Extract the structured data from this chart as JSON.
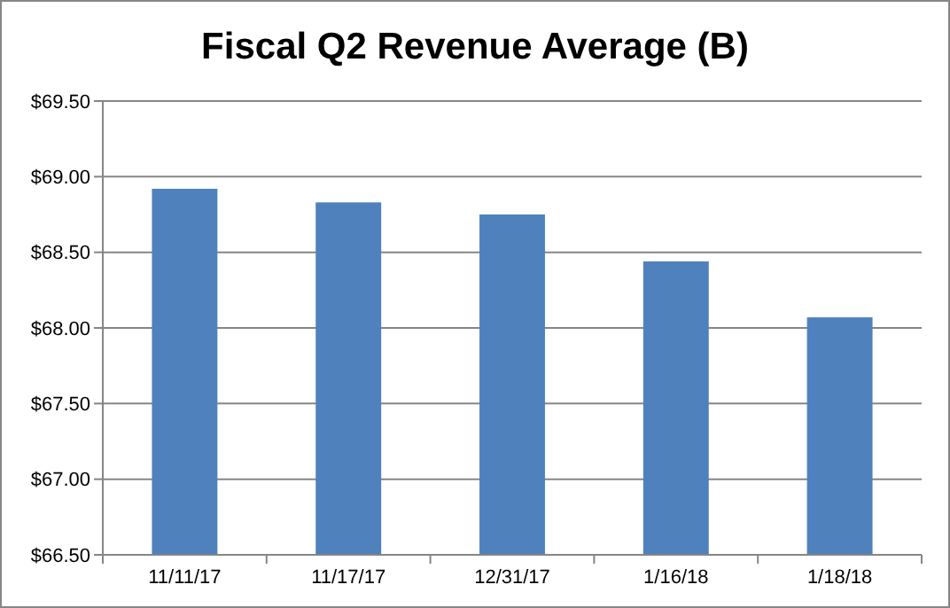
{
  "chart_data": {
    "type": "bar",
    "title": "Fiscal Q2 Revenue Average (B)",
    "categories": [
      "11/11/17",
      "11/17/17",
      "12/31/17",
      "1/16/18",
      "1/18/18"
    ],
    "values": [
      68.92,
      68.83,
      68.75,
      68.44,
      68.07
    ],
    "color": "#4f81bd",
    "ylim": [
      66.5,
      69.5
    ],
    "yticks": [
      {
        "value": 66.5,
        "label": "$66.50"
      },
      {
        "value": 67,
        "label": "$67.00"
      },
      {
        "value": 67.5,
        "label": "$67.50"
      },
      {
        "value": 68,
        "label": "$68.00"
      },
      {
        "value": 68.5,
        "label": "$68.50"
      },
      {
        "value": 69,
        "label": "$69.00"
      },
      {
        "value": 69.5,
        "label": "$69.50"
      }
    ],
    "grid": "y"
  }
}
